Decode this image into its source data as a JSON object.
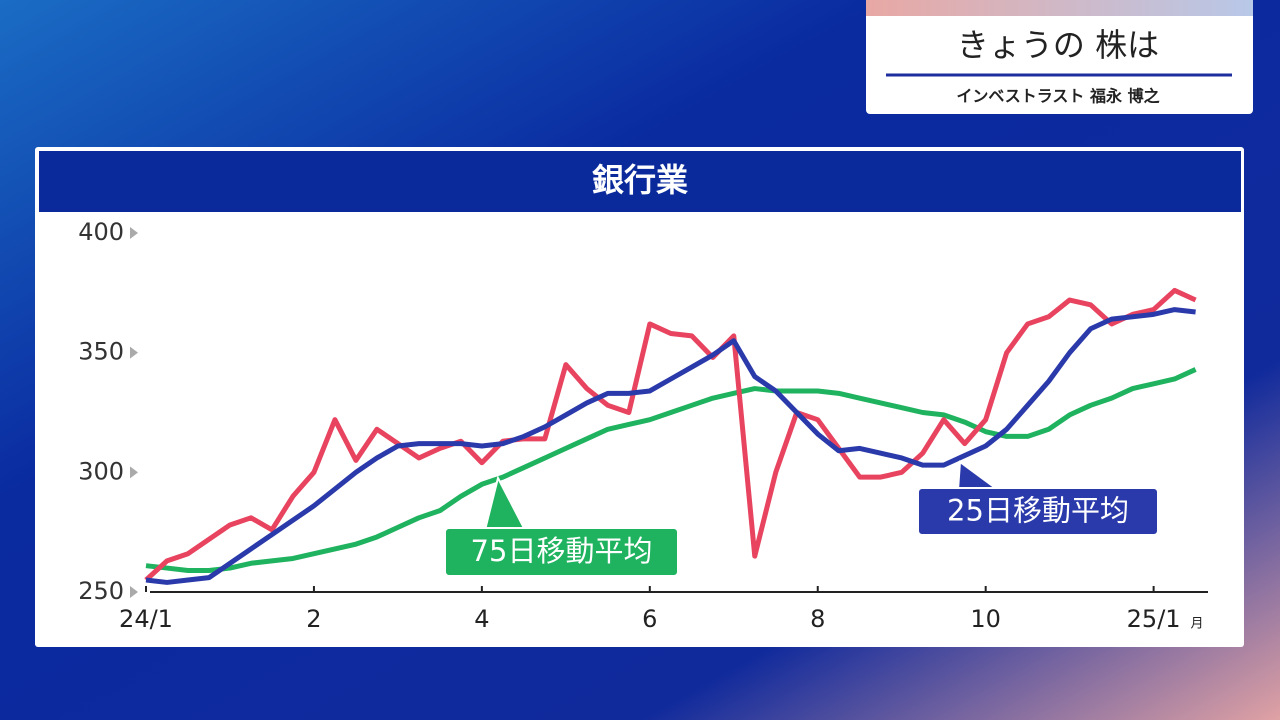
{
  "header": {
    "title": "きょうの 株は",
    "subtitle": "インベストラスト 福永 博之"
  },
  "chart_data": {
    "type": "line",
    "title": "銀行業",
    "x": [
      0,
      0.25,
      0.5,
      0.75,
      1,
      1.25,
      1.5,
      1.75,
      2,
      2.25,
      2.5,
      2.75,
      3,
      3.25,
      3.5,
      3.75,
      4,
      4.25,
      4.5,
      4.75,
      5,
      5.25,
      5.5,
      5.75,
      6,
      6.25,
      6.5,
      6.75,
      7,
      7.25,
      7.5,
      7.75,
      8,
      8.25,
      8.5,
      8.75,
      9,
      9.25,
      9.5,
      9.75,
      10,
      10.25,
      10.5,
      10.75,
      11,
      11.25,
      11.5,
      11.75,
      12,
      12.25,
      12.5
    ],
    "series": [
      {
        "color": "#e8445f",
        "values": [
          255,
          263,
          266,
          272,
          278,
          281,
          276,
          290,
          300,
          322,
          305,
          318,
          312,
          306,
          310,
          313,
          304,
          313,
          314,
          314,
          345,
          335,
          328,
          325,
          362,
          358,
          357,
          348,
          357,
          265,
          300,
          325,
          322,
          310,
          298,
          298,
          300,
          308,
          322,
          312,
          322,
          350,
          362,
          365,
          372,
          370,
          362,
          366,
          368,
          376,
          372
        ]
      },
      {
        "name": "25日移動平均",
        "color": "#2b3aab",
        "values": [
          255,
          254,
          255,
          256,
          262,
          268,
          274,
          280,
          286,
          293,
          300,
          306,
          311,
          312,
          312,
          312,
          311,
          312,
          315,
          319,
          324,
          329,
          333,
          333,
          334,
          339,
          344,
          349,
          355,
          340,
          334,
          325,
          316,
          309,
          310,
          308,
          306,
          303,
          303,
          307,
          311,
          318,
          328,
          338,
          350,
          360,
          364,
          365,
          366,
          368,
          367
        ]
      },
      {
        "name": "75日移動平均",
        "color": "#1fb25f",
        "values": [
          261,
          260,
          259,
          259,
          260,
          262,
          263,
          264,
          266,
          268,
          270,
          273,
          277,
          281,
          284,
          290,
          295,
          298,
          302,
          306,
          310,
          314,
          318,
          320,
          322,
          325,
          328,
          331,
          333,
          335,
          334,
          334,
          334,
          333,
          331,
          329,
          327,
          325,
          324,
          321,
          317,
          315,
          315,
          318,
          324,
          328,
          331,
          335,
          337,
          339,
          343
        ]
      }
    ],
    "xlim": [
      0,
      12.6
    ],
    "xticks": [
      {
        "value": 0,
        "label": "24/1"
      },
      2,
      4,
      6,
      8,
      10,
      {
        "value": 12,
        "label": "25/1"
      }
    ],
    "x_unit": "月",
    "ylim": [
      250,
      400
    ],
    "yticks": [
      250,
      300,
      350,
      400
    ]
  }
}
